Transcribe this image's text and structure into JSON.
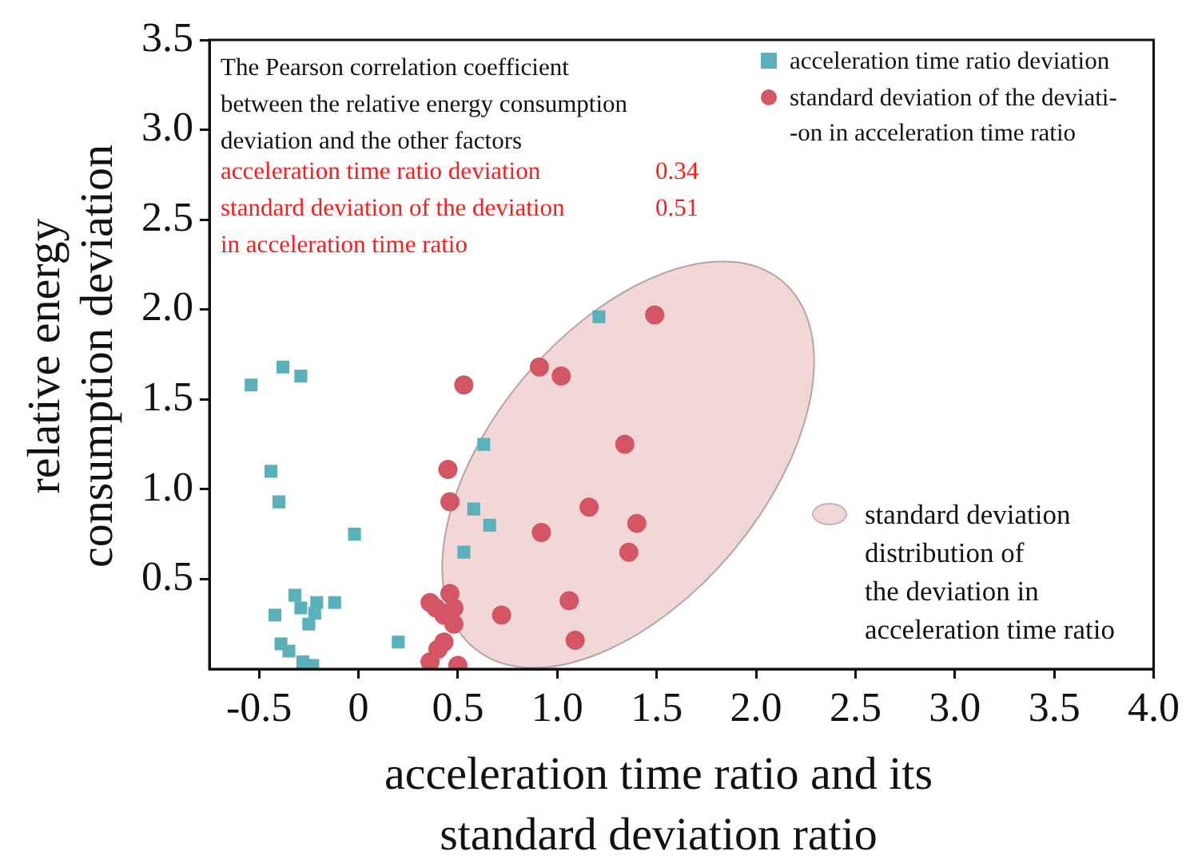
{
  "chart_data": {
    "type": "scatter",
    "xlabel": "acceleration time ratio and its standard deviation ratio",
    "ylabel": "relative energy consumption deviation",
    "xlim": [
      -0.75,
      4.0
    ],
    "xticks": [
      -0.5,
      0,
      0.5,
      {
        "value": 1,
        "label": "1.0"
      },
      1.5,
      {
        "value": 2,
        "label": "2.0"
      },
      2.5,
      {
        "value": 3,
        "label": "3.0"
      },
      3.5,
      {
        "value": 4,
        "label": "4.0"
      }
    ],
    "ylim": [
      0,
      3.5
    ],
    "yticks": [
      0.5,
      {
        "value": 1,
        "label": "1.0"
      },
      1.5,
      {
        "value": 2,
        "label": "2.0"
      },
      2.5,
      {
        "value": 3,
        "label": "3.0"
      },
      3.5
    ],
    "grid": false,
    "legend": "top right",
    "annotations": [
      "The Pearson correlation coefficient\nbetween the relative energy consumption\ndeviation and the other factors",
      "acceleration time ratio deviation",
      "0.34",
      "standard deviation of the deviation\nin acceleration time ratio",
      "0.51",
      "standard deviation\ndistribution of\nthe deviation in\nacceleration time ratio"
    ],
    "series": [
      {
        "name": "acceleration time ratio deviation",
        "color": "#5bb1b9",
        "marker": "square",
        "x": [
          -0.54,
          -0.38,
          -0.29,
          -0.44,
          -0.4,
          -0.02,
          -0.32,
          -0.42,
          -0.29,
          -0.21,
          -0.22,
          -0.25,
          -0.12,
          -0.39,
          -0.35,
          -0.28,
          -0.23,
          0.2,
          0.53,
          0.63,
          0.58,
          0.66,
          1.21
        ],
        "values": [
          1.58,
          1.68,
          1.63,
          1.1,
          0.93,
          0.75,
          0.41,
          0.3,
          0.34,
          0.37,
          0.31,
          0.25,
          0.37,
          0.14,
          0.1,
          0.04,
          0.02,
          0.15,
          0.65,
          1.25,
          0.89,
          0.8,
          1.96
        ]
      },
      {
        "name": "standard deviation of the deviati-\n-on in acceleration time ratio",
        "color": "#d45563",
        "marker": "circle",
        "x": [
          0.53,
          0.45,
          0.46,
          0.91,
          1.02,
          0.92,
          0.72,
          0.46,
          0.36,
          0.39,
          0.48,
          0.43,
          0.48,
          0.43,
          0.4,
          0.36,
          0.5,
          1.49,
          1.34,
          1.16,
          1.4,
          1.36,
          1.06,
          1.09
        ],
        "values": [
          1.58,
          1.11,
          0.93,
          1.68,
          1.63,
          0.76,
          0.3,
          0.42,
          0.37,
          0.34,
          0.34,
          0.3,
          0.25,
          0.15,
          0.11,
          0.04,
          0.02,
          1.97,
          1.25,
          0.9,
          0.81,
          0.65,
          0.38,
          0.16
        ]
      }
    ]
  }
}
